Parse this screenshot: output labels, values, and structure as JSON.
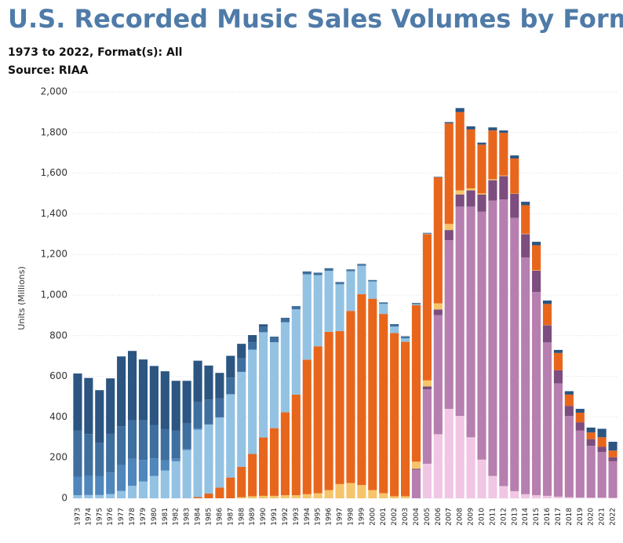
{
  "chart_data": {
    "type": "stacked-bar",
    "title": "U.S. Recorded Music Sales Volumes by Format",
    "subtitle": "1973 to 2022, Format(s): All",
    "source": "Source: RIAA",
    "y_label": "Units (Millions)",
    "categories": [
      "1973",
      "1974",
      "1975",
      "1976",
      "1977",
      "1978",
      "1979",
      "1980",
      "1981",
      "1982",
      "1983",
      "1984",
      "1985",
      "1986",
      "1987",
      "1988",
      "1989",
      "1990",
      "1991",
      "1992",
      "1993",
      "1994",
      "1995",
      "1996",
      "1997",
      "1998",
      "1999",
      "2000",
      "2001",
      "2002",
      "2003",
      "2004",
      "2005",
      "2006",
      "2007",
      "2008",
      "2009",
      "2010",
      "2011",
      "2012",
      "2013",
      "2014",
      "2015",
      "2016",
      "2017",
      "2018",
      "2019",
      "2020",
      "2021",
      "2022"
    ],
    "series": [
      {
        "color": "#f0c6e4",
        "values": [
          0,
          0,
          0,
          0,
          0,
          0,
          0,
          0,
          0,
          0,
          0,
          0,
          0,
          0,
          0,
          0,
          0,
          0,
          0,
          0,
          0,
          0,
          0,
          0,
          0,
          0,
          0,
          0,
          0,
          0,
          0,
          0,
          170,
          315,
          440,
          405,
          300,
          190,
          110,
          60,
          35,
          20,
          15,
          12,
          8,
          5,
          4,
          3,
          3,
          2
        ]
      },
      {
        "color": "#b67faf",
        "values": [
          0,
          0,
          0,
          0,
          0,
          0,
          0,
          0,
          0,
          0,
          0,
          0,
          0,
          0,
          0,
          0,
          0,
          0,
          0,
          0,
          0,
          0,
          0,
          0,
          0,
          0,
          0,
          0,
          0,
          0,
          0,
          140,
          366,
          586,
          830,
          1030,
          1135,
          1220,
          1355,
          1410,
          1345,
          1165,
          1000,
          755,
          557,
          400,
          330,
          255,
          225,
          180
        ]
      },
      {
        "color": "#7c4d7e",
        "values": [
          0,
          0,
          0,
          0,
          0,
          0,
          0,
          0,
          0,
          0,
          0,
          0,
          0,
          0,
          0,
          0,
          0,
          0,
          0,
          0,
          0,
          0,
          0,
          0,
          0,
          0,
          0,
          0,
          0,
          0,
          0,
          5,
          14,
          28,
          50,
          60,
          80,
          85,
          100,
          115,
          118,
          115,
          105,
          85,
          65,
          50,
          40,
          33,
          25,
          20
        ]
      },
      {
        "color": "#f6c46a",
        "values": [
          0,
          0,
          0,
          0,
          0,
          0,
          0,
          0,
          0,
          0,
          0,
          0,
          0,
          0,
          0,
          5,
          10,
          12,
          12,
          15,
          15,
          20,
          25,
          40,
          70,
          75,
          65,
          40,
          25,
          10,
          10,
          35,
          30,
          30,
          30,
          20,
          10,
          5,
          5,
          3,
          2,
          2,
          2,
          1,
          0,
          0,
          0,
          0,
          0,
          0
        ]
      },
      {
        "color": "#e8661c",
        "values": [
          0,
          0,
          0,
          0,
          0,
          0,
          0,
          0,
          0,
          0,
          0,
          6,
          23,
          53,
          102,
          150,
          208,
          287,
          333,
          408,
          495,
          662,
          723,
          779,
          753,
          847,
          939,
          942,
          882,
          803,
          760,
          770,
          720,
          620,
          495,
          385,
          290,
          240,
          240,
          210,
          172,
          140,
          123,
          103,
          85,
          55,
          47,
          33,
          47,
          33
        ]
      },
      {
        "color": "#93c2e3",
        "values": [
          15,
          16,
          16,
          21,
          36,
          61,
          83,
          110,
          137,
          182,
          237,
          332,
          339,
          345,
          410,
          467,
          513,
          518,
          423,
          443,
          420,
          420,
          350,
          300,
          230,
          195,
          140,
          85,
          50,
          32,
          17,
          5,
          2,
          0,
          0,
          0,
          0,
          0,
          0,
          0,
          0,
          0,
          0,
          0,
          0,
          0,
          0,
          0,
          0,
          0
        ]
      },
      {
        "color": "#4f86bb",
        "values": [
          91,
          96,
          94,
          106,
          128,
          133,
          105,
          86,
          49,
          14,
          6,
          6,
          3,
          0,
          0,
          0,
          0,
          0,
          0,
          0,
          0,
          0,
          0,
          0,
          0,
          0,
          0,
          0,
          0,
          0,
          0,
          0,
          0,
          0,
          0,
          0,
          0,
          0,
          0,
          0,
          0,
          0,
          0,
          0,
          0,
          0,
          0,
          0,
          0,
          0
        ]
      },
      {
        "color": "#3e6f9f",
        "values": [
          228,
          204,
          164,
          190,
          190,
          190,
          195,
          165,
          154,
          138,
          125,
          131,
          121,
          94,
          82,
          66,
          37,
          27,
          22,
          20,
          15,
          12,
          10,
          10,
          8,
          6,
          6,
          5,
          5,
          10,
          8,
          4,
          3,
          1,
          0,
          0,
          0,
          0,
          0,
          0,
          0,
          0,
          0,
          0,
          0,
          0,
          0,
          0,
          0,
          0
        ]
      },
      {
        "color": "#2c5581",
        "values": [
          280,
          276,
          258,
          273,
          344,
          341,
          300,
          290,
          285,
          244,
          210,
          202,
          167,
          125,
          107,
          72,
          35,
          12,
          5,
          2,
          1,
          2,
          2,
          3,
          3,
          3,
          3,
          2,
          2,
          2,
          2,
          2,
          1,
          2,
          6,
          20,
          15,
          10,
          15,
          12,
          15,
          17,
          17,
          17,
          15,
          17,
          19,
          24,
          42,
          43
        ]
      }
    ],
    "ylim": [
      0,
      2000
    ],
    "yticks": [
      0,
      200,
      400,
      600,
      800,
      {
        "value": 1000,
        "label": "1,000"
      },
      {
        "value": 1200,
        "label": "1,200"
      },
      {
        "value": 1400,
        "label": "1,400"
      },
      {
        "value": 1600,
        "label": "1,600"
      },
      {
        "value": 1800,
        "label": "1,800"
      },
      {
        "value": 2000,
        "label": "2,000"
      }
    ],
    "grid": true
  }
}
